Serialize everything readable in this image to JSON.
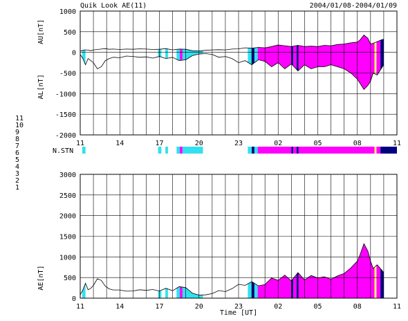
{
  "title_left": "Quik Look AE(11)",
  "title_right": "2004/01/08-2004/01/09",
  "colors": {
    "cyan": "#33e0ee",
    "magenta": "#ff00ff",
    "navy": "#000080",
    "yellow": "#ffff66",
    "black": "#000000"
  },
  "station_legend": [
    {
      "label": "11",
      "color": "#33dddd"
    },
    {
      "label": "10",
      "color": "#ff00ff"
    },
    {
      "label": "9",
      "color": "#1010ee"
    },
    {
      "label": "8",
      "color": "#eeee00"
    },
    {
      "label": "7",
      "color": "#88dd88"
    },
    {
      "label": "6",
      "color": "#ee1111"
    },
    {
      "label": "5",
      "color": "#eeeeee"
    },
    {
      "label": "4",
      "color": "#999999"
    },
    {
      "label": "3",
      "color": "#22bbbb"
    },
    {
      "label": "2",
      "color": "#cc00cc"
    },
    {
      "label": "1",
      "color": "#1111bb"
    }
  ],
  "nstn_label": "N.STN",
  "x_tick_labels": [
    "11",
    "14",
    "17",
    "20",
    "23",
    "02",
    "05",
    "08",
    "11"
  ],
  "x_axis_label": "Time [UT]",
  "nstn_segments": [
    {
      "start": 11.15,
      "end": 11.4,
      "stations": 11
    },
    {
      "start": 16.9,
      "end": 17.15,
      "stations": 11
    },
    {
      "start": 17.45,
      "end": 17.65,
      "stations": 11
    },
    {
      "start": 18.3,
      "end": 18.55,
      "stations": 11
    },
    {
      "start": 18.55,
      "end": 18.75,
      "stations": 10
    },
    {
      "start": 18.75,
      "end": 20.3,
      "stations": 11
    },
    {
      "start": 23.7,
      "end": 24.0,
      "stations": 11
    },
    {
      "start": 24.0,
      "end": 24.2,
      "stations": 9
    },
    {
      "start": 24.2,
      "end": 24.45,
      "stations": 11
    },
    {
      "start": 24.45,
      "end": 27.0,
      "stations": 10
    },
    {
      "start": 27.0,
      "end": 27.15,
      "stations": 9
    },
    {
      "start": 27.15,
      "end": 27.4,
      "stations": 10
    },
    {
      "start": 27.4,
      "end": 27.55,
      "stations": 9
    },
    {
      "start": 27.55,
      "end": 33.3,
      "stations": 10
    },
    {
      "start": 33.3,
      "end": 33.45,
      "stations": 8
    },
    {
      "start": 33.45,
      "end": 33.75,
      "stations": 10
    },
    {
      "start": 33.75,
      "end": 35.0,
      "stations": 9
    }
  ],
  "chart_data": [
    {
      "type": "area",
      "ylabel_upper": "AU[nT]",
      "ylabel_lower": "AL[nT]",
      "ylim": [
        -2000,
        1000
      ],
      "yticks": [
        1000,
        500,
        0,
        -500,
        -1000,
        -1500,
        -2000
      ],
      "xlim": [
        11,
        35
      ],
      "grid": true,
      "series": [
        {
          "x": [
            11.0,
            11.2,
            11.4,
            11.6,
            11.8,
            12.0,
            12.3,
            12.6,
            12.9,
            13.2,
            13.5,
            14.0,
            14.5,
            15.0,
            15.5,
            16.0,
            16.5,
            17.0,
            17.5,
            18.0,
            18.5,
            19.0,
            19.5,
            20.0,
            20.5,
            21.0,
            21.5,
            22.0,
            22.5,
            23.0,
            23.5,
            24.0,
            24.5,
            25.0,
            25.5,
            26.0,
            26.5,
            27.0,
            27.5,
            28.0,
            28.5,
            29.0,
            29.5,
            30.0,
            30.5,
            31.0,
            31.5,
            32.0,
            32.2,
            32.5,
            32.8,
            33.0,
            33.2,
            33.5,
            33.8,
            34.0
          ],
          "values": [
            30,
            50,
            60,
            55,
            40,
            60,
            70,
            80,
            90,
            75,
            80,
            70,
            80,
            75,
            85,
            80,
            70,
            75,
            90,
            60,
            80,
            75,
            40,
            35,
            50,
            60,
            65,
            60,
            80,
            85,
            110,
            100,
            120,
            110,
            140,
            180,
            160,
            140,
            170,
            140,
            150,
            140,
            170,
            160,
            190,
            200,
            230,
            250,
            300,
            420,
            340,
            200,
            220,
            260,
            300,
            320
          ]
        },
        {
          "x": [
            11.0,
            11.2,
            11.4,
            11.6,
            11.8,
            12.0,
            12.3,
            12.6,
            12.9,
            13.2,
            13.5,
            14.0,
            14.5,
            15.0,
            15.5,
            16.0,
            16.5,
            17.0,
            17.5,
            18.0,
            18.5,
            19.0,
            19.5,
            20.0,
            20.5,
            21.0,
            21.5,
            22.0,
            22.5,
            23.0,
            23.5,
            24.0,
            24.5,
            25.0,
            25.5,
            26.0,
            26.5,
            27.0,
            27.5,
            28.0,
            28.5,
            29.0,
            29.5,
            30.0,
            30.5,
            31.0,
            31.5,
            32.0,
            32.2,
            32.5,
            32.8,
            33.0,
            33.2,
            33.5,
            33.8,
            34.0
          ],
          "values": [
            -50,
            -150,
            -300,
            -150,
            -200,
            -250,
            -400,
            -350,
            -200,
            -150,
            -120,
            -130,
            -90,
            -100,
            -120,
            -110,
            -140,
            -100,
            -150,
            -120,
            -200,
            -180,
            -80,
            -40,
            -30,
            -50,
            -120,
            -100,
            -150,
            -250,
            -200,
            -300,
            -180,
            -220,
            -350,
            -250,
            -400,
            -280,
            -450,
            -300,
            -400,
            -350,
            -350,
            -300,
            -350,
            -400,
            -500,
            -650,
            -750,
            -900,
            -800,
            -700,
            -500,
            -550,
            -400,
            -300
          ]
        }
      ]
    },
    {
      "type": "area",
      "ylabel": "AE[nT]",
      "ylim": [
        0,
        3000
      ],
      "yticks": [
        3000,
        2500,
        2000,
        1500,
        1000,
        500,
        0
      ],
      "xlim": [
        11,
        35
      ],
      "grid": true,
      "series": [
        {
          "x": [
            11.0,
            11.2,
            11.4,
            11.6,
            11.8,
            12.0,
            12.3,
            12.6,
            12.9,
            13.2,
            13.5,
            14.0,
            14.5,
            15.0,
            15.5,
            16.0,
            16.5,
            17.0,
            17.5,
            18.0,
            18.5,
            19.0,
            19.5,
            20.0,
            20.5,
            21.0,
            21.5,
            22.0,
            22.5,
            23.0,
            23.5,
            24.0,
            24.5,
            25.0,
            25.5,
            26.0,
            26.5,
            27.0,
            27.5,
            28.0,
            28.5,
            29.0,
            29.5,
            30.0,
            30.5,
            31.0,
            31.5,
            32.0,
            32.2,
            32.5,
            32.8,
            33.0,
            33.2,
            33.5,
            33.8,
            34.0
          ],
          "values": [
            80,
            200,
            360,
            205,
            240,
            310,
            470,
            430,
            290,
            225,
            200,
            200,
            170,
            175,
            205,
            190,
            210,
            175,
            240,
            180,
            280,
            255,
            120,
            75,
            80,
            110,
            185,
            160,
            230,
            335,
            310,
            400,
            300,
            330,
            490,
            430,
            560,
            420,
            620,
            440,
            550,
            490,
            520,
            460,
            540,
            600,
            730,
            900,
            1050,
            1320,
            1140,
            900,
            720,
            810,
            700,
            620
          ]
        }
      ]
    }
  ]
}
